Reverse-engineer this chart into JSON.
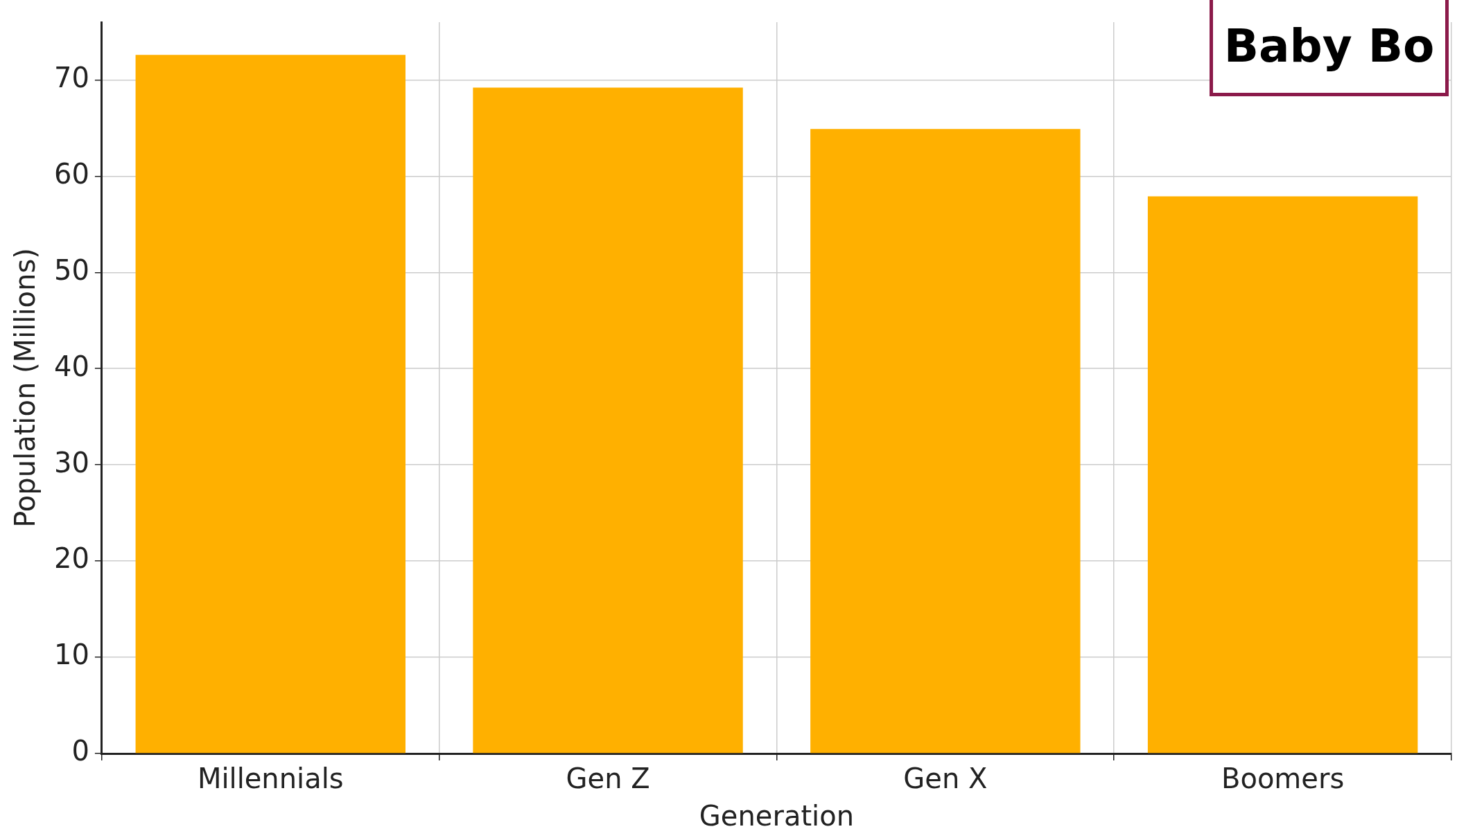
{
  "chart_data": {
    "type": "bar",
    "categories": [
      "Millennials",
      "Gen Z",
      "Gen X",
      "Boomers"
    ],
    "values": [
      72.6,
      69.2,
      64.9,
      57.9
    ],
    "color": "#ffb000",
    "xlabel": "Generation",
    "ylabel": "Population (Millions)",
    "ylim": [
      0,
      76
    ],
    "yticks": [
      0,
      10,
      20,
      30,
      40,
      50,
      60,
      70
    ],
    "grid": true,
    "legend": false,
    "annotations": [
      "Baby Bo"
    ]
  }
}
